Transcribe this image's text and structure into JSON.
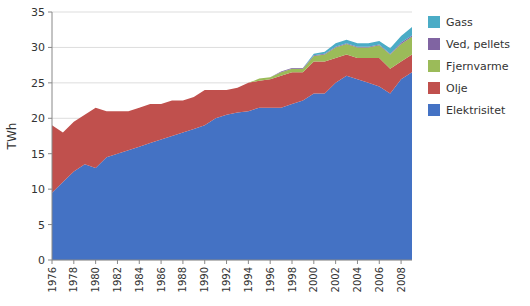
{
  "chart_data": {
    "type": "area",
    "stacked": true,
    "x": [
      1976,
      1977,
      1978,
      1979,
      1980,
      1981,
      1982,
      1983,
      1984,
      1985,
      1986,
      1987,
      1988,
      1989,
      1990,
      1991,
      1992,
      1993,
      1994,
      1995,
      1996,
      1997,
      1998,
      1999,
      2000,
      2001,
      2002,
      2003,
      2004,
      2005,
      2006,
      2007,
      2008,
      2009
    ],
    "xlim": [
      1976,
      2009
    ],
    "xticks": [
      1976,
      1978,
      1980,
      1982,
      1984,
      1986,
      1988,
      1990,
      1992,
      1994,
      1996,
      1998,
      2000,
      2002,
      2004,
      2006,
      2008
    ],
    "ylabel": "TWh",
    "ylim": [
      0,
      35
    ],
    "yticks": [
      0,
      5,
      10,
      15,
      20,
      25,
      30,
      35
    ],
    "grid": true,
    "legend": "right",
    "series": [
      {
        "name": "Elektrisitet",
        "color": "#4472C4",
        "values": [
          9.5,
          11.0,
          12.5,
          13.5,
          13.0,
          14.5,
          15.0,
          15.5,
          16.0,
          16.5,
          17.0,
          17.5,
          18.0,
          18.5,
          19.0,
          20.0,
          20.5,
          20.8,
          21.0,
          21.5,
          21.5,
          21.5,
          22.0,
          22.5,
          23.5,
          23.5,
          25.0,
          26.0,
          25.5,
          25.0,
          24.5,
          23.5,
          25.5,
          26.5
        ]
      },
      {
        "name": "Olje",
        "color": "#C0504D",
        "values": [
          9.5,
          7.0,
          7.0,
          7.0,
          8.5,
          6.5,
          6.0,
          5.5,
          5.5,
          5.5,
          5.0,
          5.0,
          4.5,
          4.5,
          5.0,
          4.0,
          3.5,
          3.5,
          4.0,
          3.8,
          4.0,
          4.5,
          4.5,
          4.0,
          4.5,
          4.5,
          3.5,
          3.0,
          3.0,
          3.5,
          4.0,
          3.5,
          2.5,
          2.5
        ]
      },
      {
        "name": "Fjernvarme",
        "color": "#9BBB59",
        "values": [
          0.0,
          0.0,
          0.0,
          0.0,
          0.0,
          0.0,
          0.0,
          0.0,
          0.0,
          0.0,
          0.0,
          0.0,
          0.0,
          0.0,
          0.0,
          0.0,
          0.0,
          0.0,
          0.0,
          0.3,
          0.3,
          0.5,
          0.5,
          0.5,
          0.8,
          1.0,
          1.5,
          1.5,
          1.5,
          1.5,
          1.8,
          2.0,
          2.5,
          2.5
        ]
      },
      {
        "name": "Ved, pellets",
        "color": "#8064A2",
        "values": [
          0.0,
          0.0,
          0.0,
          0.0,
          0.0,
          0.0,
          0.0,
          0.0,
          0.0,
          0.0,
          0.0,
          0.0,
          0.0,
          0.0,
          0.0,
          0.0,
          0.0,
          0.0,
          0.0,
          0.0,
          0.0,
          0.1,
          0.1,
          0.1,
          0.1,
          0.1,
          0.1,
          0.1,
          0.1,
          0.1,
          0.1,
          0.1,
          0.2,
          0.2
        ]
      },
      {
        "name": "Gass",
        "color": "#4BACC6",
        "values": [
          0.0,
          0.0,
          0.0,
          0.0,
          0.0,
          0.0,
          0.0,
          0.0,
          0.0,
          0.0,
          0.0,
          0.0,
          0.0,
          0.0,
          0.0,
          0.0,
          0.0,
          0.0,
          0.0,
          0.0,
          0.0,
          0.0,
          0.0,
          0.0,
          0.2,
          0.3,
          0.5,
          0.5,
          0.5,
          0.5,
          0.5,
          0.8,
          0.9,
          1.2
        ]
      }
    ]
  }
}
